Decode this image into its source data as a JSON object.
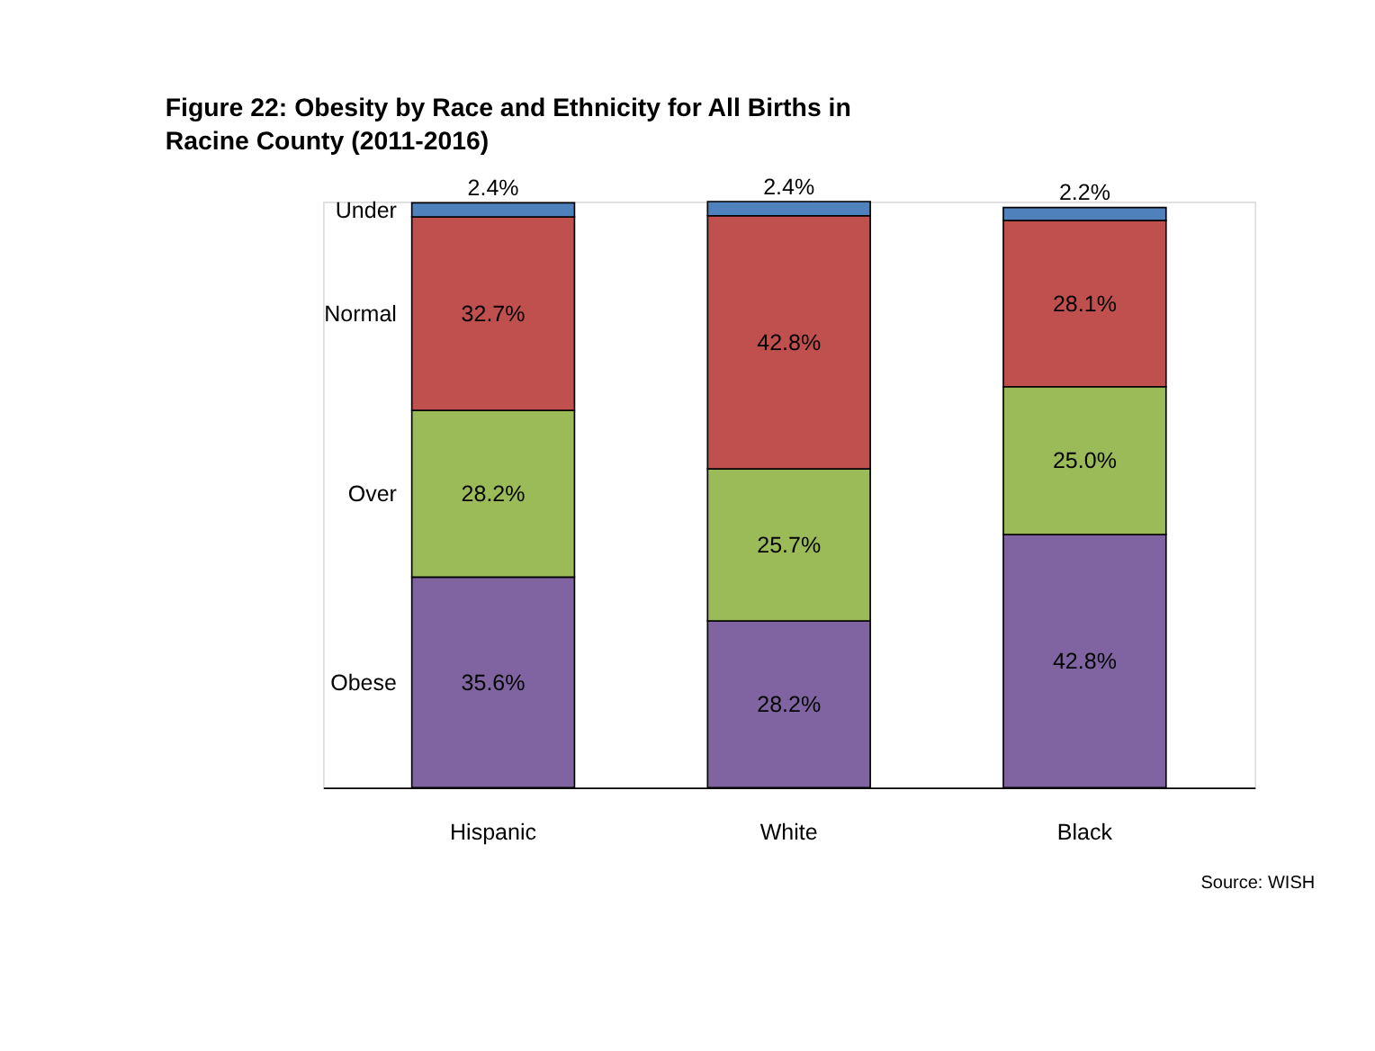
{
  "chart_data": {
    "type": "bar",
    "title": "Figure 22: Obesity by Race and Ethnicity for All Births in Racine County (2011-2016)",
    "categories": [
      "Hispanic",
      "White",
      "Black"
    ],
    "stacked": true,
    "tick_labels": "x",
    "series": [
      {
        "name": "Obese",
        "color": "#8064a2",
        "values": [
          35.6,
          28.2,
          42.8
        ],
        "value_labels": [
          "35.6%",
          "28.2%",
          "42.8%"
        ]
      },
      {
        "name": "Over",
        "color": "#9bbb59",
        "values": [
          28.2,
          25.7,
          25.0
        ],
        "value_labels": [
          "28.2%",
          "25.7%",
          "25.0%"
        ]
      },
      {
        "name": "Normal",
        "color": "#c0504d",
        "values": [
          32.7,
          42.8,
          28.1
        ],
        "value_labels": [
          "32.7%",
          "42.8%",
          "28.1%"
        ]
      },
      {
        "name": "Under",
        "color": "#4f81bd",
        "values": [
          2.4,
          2.4,
          2.2
        ],
        "value_labels": [
          "2.4%",
          "2.4%",
          "2.2%"
        ]
      }
    ],
    "annotations": [
      "Source: WISH"
    ]
  }
}
